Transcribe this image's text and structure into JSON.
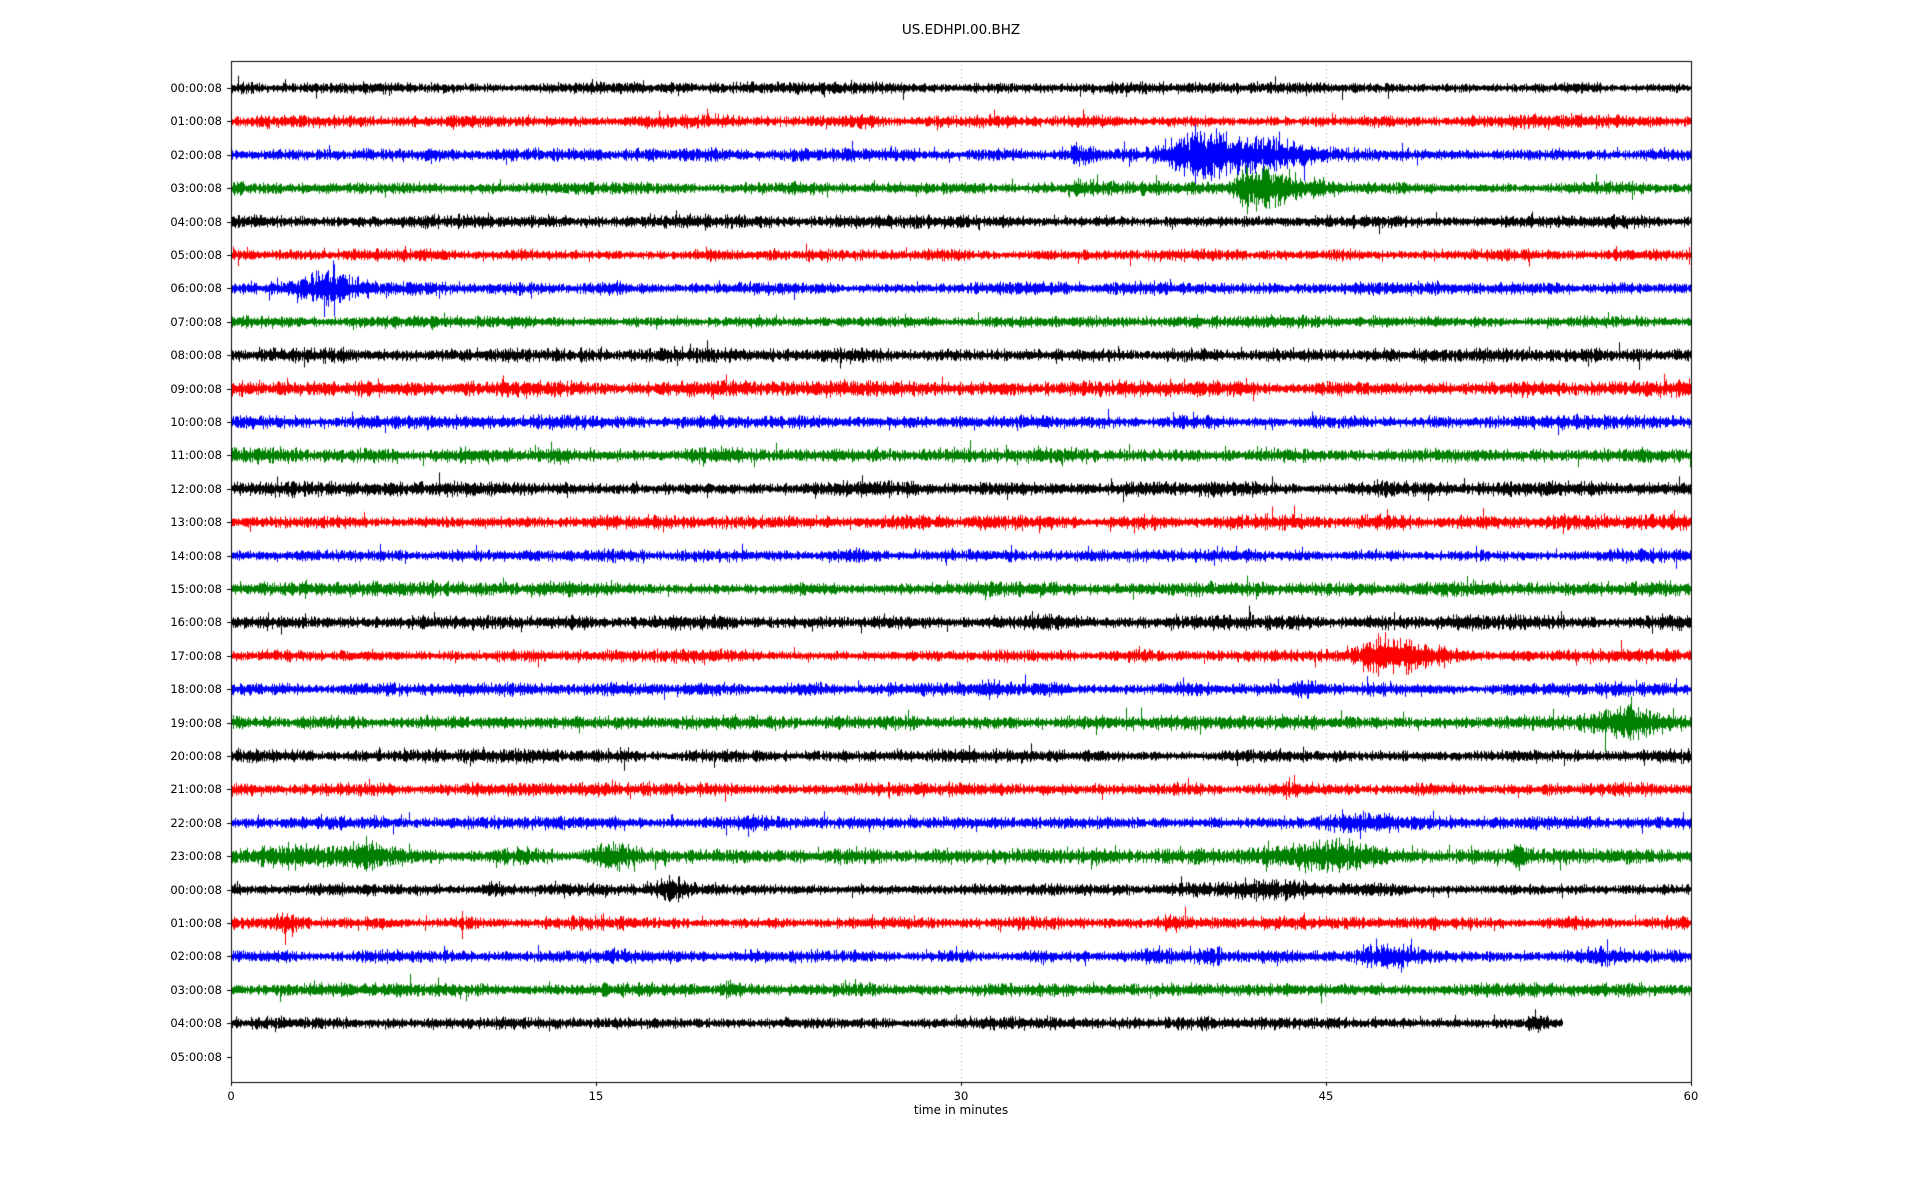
{
  "chart_data": {
    "type": "line",
    "subtype": "helicorder-seismogram",
    "title": "US.EDHPI.00.BHZ",
    "xlabel": "time in minutes",
    "xlim": [
      0,
      60
    ],
    "x_ticks": [
      "0",
      "15",
      "30",
      "45",
      "60"
    ],
    "x_tick_values": [
      0,
      15,
      30,
      45,
      60
    ],
    "x_gridlines_minutes": [
      15,
      30,
      45
    ],
    "grid_on": true,
    "grid_color": "#b0b0b0",
    "axis_color": "#000000",
    "trace_color_cycle": [
      "#000000",
      "#ff0000",
      "#0000ff",
      "#008000"
    ],
    "rows": [
      {
        "label": "00:00:08",
        "color": "black",
        "noise": 3.0,
        "bursts": [],
        "spikes": [
          {
            "t": 36.8,
            "u": 3,
            "d": 9
          }
        ]
      },
      {
        "label": "01:00:08",
        "color": "red",
        "noise": 3.4,
        "bursts": [],
        "spikes": [
          {
            "t": 12.2,
            "u": 7,
            "d": 5
          },
          {
            "t": 29.0,
            "u": 2,
            "d": 9
          }
        ]
      },
      {
        "label": "02:00:08",
        "color": "blue",
        "noise": 3.4,
        "bursts": [
          {
            "t": 34.8,
            "a": 1.3,
            "atk": 0.25,
            "dec": 0.5
          },
          {
            "t": 39.7,
            "a": 3.5,
            "atk": 0.7,
            "dec": 2.2
          },
          {
            "t": 41.0,
            "a": 1.0,
            "atk": 1.0,
            "dec": 4.0
          }
        ],
        "spikes": [
          {
            "t": 28.9,
            "u": 8,
            "d": 3
          },
          {
            "t": 29.5,
            "u": 2,
            "d": 8
          },
          {
            "t": 34.6,
            "u": 9,
            "d": 9
          },
          {
            "t": 35.0,
            "u": 7,
            "d": 10
          },
          {
            "t": 39.3,
            "u": 22,
            "d": 13
          },
          {
            "t": 39.6,
            "u": 30,
            "d": 34
          },
          {
            "t": 39.9,
            "u": 12,
            "d": 20
          },
          {
            "t": 41.6,
            "u": 6,
            "d": 8
          },
          {
            "t": 44.1,
            "u": 2,
            "d": 26
          }
        ]
      },
      {
        "label": "03:00:08",
        "color": "green",
        "noise": 3.4,
        "bursts": [
          {
            "t": 34.9,
            "a": 1.1,
            "atk": 0.3,
            "dec": 0.8
          },
          {
            "t": 41.9,
            "a": 2.6,
            "atk": 0.4,
            "dec": 1.8
          }
        ],
        "spikes": [
          {
            "t": 41.75,
            "u": 20,
            "d": 26
          },
          {
            "t": 42.15,
            "u": 8,
            "d": 6
          },
          {
            "t": 56.1,
            "u": 14,
            "d": 4
          },
          {
            "t": 57.9,
            "u": 4,
            "d": 4
          }
        ]
      },
      {
        "label": "04:00:08",
        "color": "black",
        "noise": 3.6,
        "bursts": [],
        "spikes": []
      },
      {
        "label": "05:00:08",
        "color": "red",
        "noise": 3.0,
        "bursts": [],
        "spikes": [
          {
            "t": 56.9,
            "u": 9,
            "d": 4
          },
          {
            "t": 57.6,
            "u": 5,
            "d": 3
          }
        ]
      },
      {
        "label": "06:00:08",
        "color": "blue",
        "noise": 3.4,
        "bursts": [
          {
            "t": 4.0,
            "a": 2.2,
            "atk": 1.0,
            "dec": 1.1
          }
        ],
        "spikes": [
          {
            "t": 3.1,
            "u": 8,
            "d": 6
          },
          {
            "t": 4.25,
            "u": 24,
            "d": 28
          }
        ]
      },
      {
        "label": "07:00:08",
        "color": "green",
        "noise": 3.2,
        "bursts": [],
        "spikes": []
      },
      {
        "label": "08:00:08",
        "color": "black",
        "noise": 3.8,
        "bursts": [],
        "spikes": []
      },
      {
        "label": "09:00:08",
        "color": "red",
        "noise": 4.2,
        "bursts": [],
        "spikes": []
      },
      {
        "label": "10:00:08",
        "color": "blue",
        "noise": 3.6,
        "bursts": [],
        "spikes": []
      },
      {
        "label": "11:00:08",
        "color": "green",
        "noise": 4.2,
        "bursts": [],
        "spikes": []
      },
      {
        "label": "12:00:08",
        "color": "black",
        "noise": 4.0,
        "bursts": [],
        "spikes": []
      },
      {
        "label": "13:00:08",
        "color": "red",
        "noise": 4.0,
        "bursts": [],
        "spikes": [
          {
            "t": 4.7,
            "u": 6,
            "d": 7
          }
        ]
      },
      {
        "label": "14:00:08",
        "color": "blue",
        "noise": 3.4,
        "bursts": [],
        "spikes": []
      },
      {
        "label": "15:00:08",
        "color": "green",
        "noise": 4.0,
        "bursts": [],
        "spikes": []
      },
      {
        "label": "16:00:08",
        "color": "black",
        "noise": 4.0,
        "bursts": [],
        "spikes": []
      },
      {
        "label": "17:00:08",
        "color": "red",
        "noise": 3.4,
        "bursts": [
          {
            "t": 47.0,
            "a": 3.2,
            "atk": 0.5,
            "dec": 1.6
          }
        ],
        "spikes": [
          {
            "t": 46.8,
            "u": 12,
            "d": 16
          },
          {
            "t": 47.15,
            "u": 14,
            "d": 10
          },
          {
            "t": 48.3,
            "u": 6,
            "d": 8
          },
          {
            "t": 49.5,
            "u": 5,
            "d": 4
          }
        ]
      },
      {
        "label": "18:00:08",
        "color": "blue",
        "noise": 3.4,
        "bursts": [
          {
            "t": 31.2,
            "a": 0.9,
            "atk": 0.3,
            "dec": 0.6
          },
          {
            "t": 44.0,
            "a": 0.8,
            "atk": 0.3,
            "dec": 0.5
          }
        ],
        "spikes": []
      },
      {
        "label": "19:00:08",
        "color": "green",
        "noise": 3.8,
        "bursts": [
          {
            "t": 57.5,
            "a": 1.5,
            "atk": 1.2,
            "dec": 1.5
          }
        ],
        "spikes": [
          {
            "t": 56.4,
            "u": 8,
            "d": 6
          },
          {
            "t": 58.8,
            "u": 4,
            "d": 12
          },
          {
            "t": 59.6,
            "u": 5,
            "d": 9
          }
        ]
      },
      {
        "label": "20:00:08",
        "color": "black",
        "noise": 3.4,
        "bursts": [],
        "spikes": []
      },
      {
        "label": "21:00:08",
        "color": "red",
        "noise": 3.6,
        "bursts": [],
        "spikes": []
      },
      {
        "label": "22:00:08",
        "color": "blue",
        "noise": 3.4,
        "bursts": [
          {
            "t": 21.3,
            "a": 1.1,
            "atk": 0.4,
            "dec": 0.9
          },
          {
            "t": 46.5,
            "a": 0.6,
            "atk": 1.0,
            "dec": 1.8
          }
        ],
        "spikes": [
          {
            "t": 26.8,
            "u": 4,
            "d": 7
          },
          {
            "t": 27.9,
            "u": 8,
            "d": 3
          }
        ]
      },
      {
        "label": "23:00:08",
        "color": "green",
        "noise": 4.2,
        "bursts": [
          {
            "t": 3.5,
            "a": 1.2,
            "atk": 1.5,
            "dec": 2.0
          },
          {
            "t": 15.5,
            "a": 1.0,
            "atk": 0.5,
            "dec": 0.8
          },
          {
            "t": 44.5,
            "a": 0.9,
            "atk": 2.0,
            "dec": 2.5
          },
          {
            "t": 52.8,
            "a": 1.1,
            "atk": 0.2,
            "dec": 0.4
          }
        ],
        "spikes": [
          {
            "t": 4.3,
            "u": 8,
            "d": 10
          },
          {
            "t": 5.2,
            "u": 9,
            "d": 6
          },
          {
            "t": 15.3,
            "u": 8,
            "d": 6
          },
          {
            "t": 17.8,
            "u": 7,
            "d": 9
          },
          {
            "t": 21.6,
            "u": 6,
            "d": 4
          },
          {
            "t": 47.9,
            "u": 6,
            "d": 5
          },
          {
            "t": 52.8,
            "u": 10,
            "d": 12
          }
        ]
      },
      {
        "label": "00:00:08",
        "color": "black",
        "noise": 3.2,
        "bursts": [
          {
            "t": 10.8,
            "a": 0.9,
            "atk": 0.3,
            "dec": 0.5
          },
          {
            "t": 18.0,
            "a": 1.4,
            "atk": 0.4,
            "dec": 0.6
          },
          {
            "t": 41.8,
            "a": 1.1,
            "atk": 1.0,
            "dec": 1.5
          }
        ],
        "spikes": [
          {
            "t": 18.1,
            "u": 6,
            "d": 10
          }
        ]
      },
      {
        "label": "01:00:08",
        "color": "red",
        "noise": 3.4,
        "bursts": [
          {
            "t": 2.2,
            "a": 1.1,
            "atk": 0.4,
            "dec": 0.5
          },
          {
            "t": 38.7,
            "a": 0.8,
            "atk": 0.3,
            "dec": 0.5
          }
        ],
        "spikes": [
          {
            "t": 1.9,
            "u": 10,
            "d": 6
          },
          {
            "t": 2.2,
            "u": 6,
            "d": 22
          },
          {
            "t": 2.5,
            "u": 4,
            "d": 14
          },
          {
            "t": 9.5,
            "u": 12,
            "d": 16
          },
          {
            "t": 15.3,
            "u": 10,
            "d": 8
          },
          {
            "t": 50.9,
            "u": 6,
            "d": 8
          },
          {
            "t": 59.0,
            "u": 8,
            "d": 6
          }
        ]
      },
      {
        "label": "02:00:08",
        "color": "blue",
        "noise": 3.4,
        "bursts": [
          {
            "t": 37.8,
            "a": 0.8,
            "atk": 0.3,
            "dec": 0.5
          },
          {
            "t": 40.2,
            "a": 0.6,
            "atk": 0.3,
            "dec": 0.4
          },
          {
            "t": 47.5,
            "a": 1.1,
            "atk": 0.8,
            "dec": 1.0
          },
          {
            "t": 56.3,
            "a": 0.8,
            "atk": 0.5,
            "dec": 0.8
          }
        ],
        "spikes": [
          {
            "t": 47.8,
            "u": 6,
            "d": 8
          },
          {
            "t": 58.1,
            "u": 5,
            "d": 5
          }
        ]
      },
      {
        "label": "03:00:08",
        "color": "green",
        "noise": 3.6,
        "bursts": [
          {
            "t": 20.5,
            "a": 0.8,
            "atk": 0.2,
            "dec": 0.4
          }
        ],
        "spikes": [
          {
            "t": 20.5,
            "u": 9,
            "d": 5
          },
          {
            "t": 30.2,
            "u": 5,
            "d": 4
          }
        ]
      },
      {
        "label": "04:00:08",
        "color": "black",
        "noise": 3.4,
        "end": 54.7,
        "bursts": [
          {
            "t": 53.6,
            "a": 0.8,
            "atk": 0.2,
            "dec": 0.5
          }
        ],
        "spikes": [
          {
            "t": 1.8,
            "u": 5,
            "d": 9
          },
          {
            "t": 47.0,
            "u": 7,
            "d": 5
          },
          {
            "t": 53.6,
            "u": 14,
            "d": 6
          }
        ]
      },
      {
        "label": "05:00:08",
        "color": null,
        "noise": 0,
        "bursts": [],
        "spikes": []
      }
    ]
  }
}
